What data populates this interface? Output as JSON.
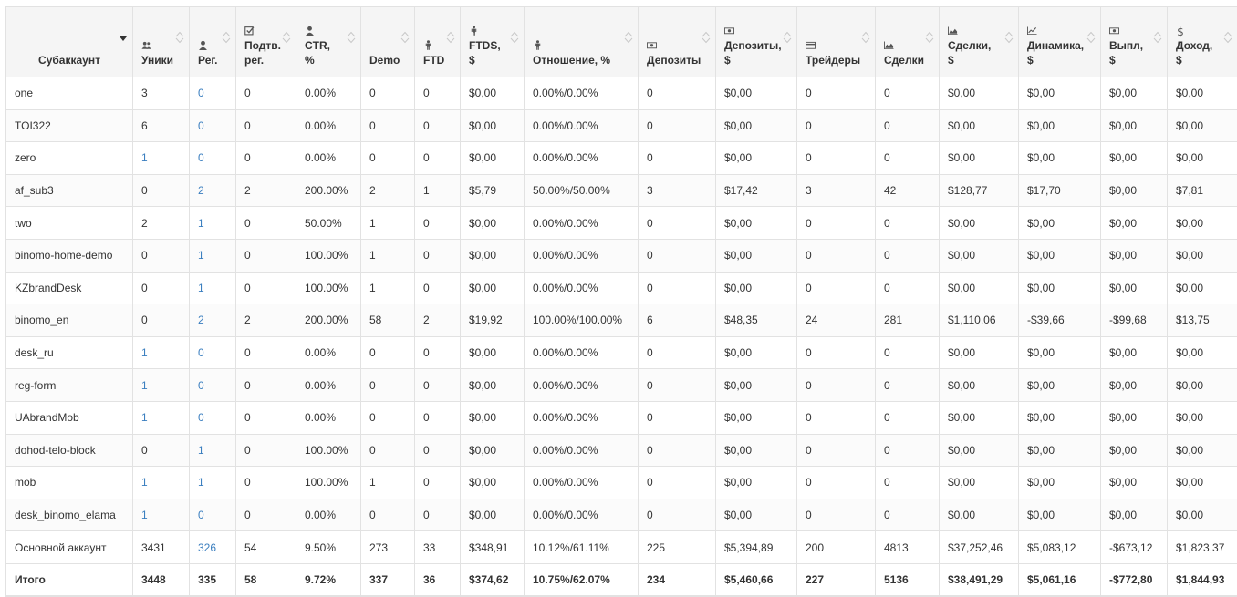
{
  "table": {
    "columns": [
      {
        "label": "Субаккаунт",
        "icon": "",
        "name": "subaccount"
      },
      {
        "label": "Уники",
        "icon": "users-icon",
        "name": "uniques"
      },
      {
        "label": "Рег.",
        "icon": "user-icon",
        "name": "reg"
      },
      {
        "label": "Подтв. рег.",
        "icon": "checkbox-icon",
        "name": "confirmed-reg"
      },
      {
        "label": "CTR, %",
        "icon": "user-icon",
        "name": "ctr"
      },
      {
        "label": "Demo",
        "icon": "",
        "name": "demo"
      },
      {
        "label": "FTD",
        "icon": "person-icon",
        "name": "ftd"
      },
      {
        "label": "FTDS, $",
        "icon": "person-icon",
        "name": "ftds"
      },
      {
        "label": "Отношение, %",
        "icon": "person-icon",
        "name": "ratio"
      },
      {
        "label": "Депозиты",
        "icon": "money-icon",
        "name": "deposits"
      },
      {
        "label": "Депозиты, $",
        "icon": "money-icon",
        "name": "deposits-usd"
      },
      {
        "label": "Трейдеры",
        "icon": "card-icon",
        "name": "traders"
      },
      {
        "label": "Сделки",
        "icon": "area-chart-icon",
        "name": "deals"
      },
      {
        "label": "Сделки, $",
        "icon": "area-chart-icon",
        "name": "deals-usd"
      },
      {
        "label": "Динамика, $",
        "icon": "line-chart-icon",
        "name": "dynamics"
      },
      {
        "label": "Выпл, $",
        "icon": "money-icon",
        "name": "payouts"
      },
      {
        "label": "Доход, $",
        "icon": "dollar-icon",
        "name": "income"
      }
    ],
    "rows": [
      [
        "one",
        "3",
        "0",
        "0",
        "0.00%",
        "0",
        "0",
        "$0,00",
        "0.00%/0.00%",
        "0",
        "$0,00",
        "0",
        "0",
        "$0,00",
        "$0,00",
        "$0,00",
        "$0,00"
      ],
      [
        "TOI322",
        "6",
        "0",
        "0",
        "0.00%",
        "0",
        "0",
        "$0,00",
        "0.00%/0.00%",
        "0",
        "$0,00",
        "0",
        "0",
        "$0,00",
        "$0,00",
        "$0,00",
        "$0,00"
      ],
      [
        "zero",
        "1",
        "0",
        "0",
        "0.00%",
        "0",
        "0",
        "$0,00",
        "0.00%/0.00%",
        "0",
        "$0,00",
        "0",
        "0",
        "$0,00",
        "$0,00",
        "$0,00",
        "$0,00"
      ],
      [
        "af_sub3",
        "0",
        "2",
        "2",
        "200.00%",
        "2",
        "1",
        "$5,79",
        "50.00%/50.00%",
        "3",
        "$17,42",
        "3",
        "42",
        "$128,77",
        "$17,70",
        "$0,00",
        "$7,81"
      ],
      [
        "two",
        "2",
        "1",
        "0",
        "50.00%",
        "1",
        "0",
        "$0,00",
        "0.00%/0.00%",
        "0",
        "$0,00",
        "0",
        "0",
        "$0,00",
        "$0,00",
        "$0,00",
        "$0,00"
      ],
      [
        "binomo-home-demo",
        "0",
        "1",
        "0",
        "100.00%",
        "1",
        "0",
        "$0,00",
        "0.00%/0.00%",
        "0",
        "$0,00",
        "0",
        "0",
        "$0,00",
        "$0,00",
        "$0,00",
        "$0,00"
      ],
      [
        "KZbrandDesk",
        "0",
        "1",
        "0",
        "100.00%",
        "1",
        "0",
        "$0,00",
        "0.00%/0.00%",
        "0",
        "$0,00",
        "0",
        "0",
        "$0,00",
        "$0,00",
        "$0,00",
        "$0,00"
      ],
      [
        "binomo_en",
        "0",
        "2",
        "2",
        "200.00%",
        "58",
        "2",
        "$19,92",
        "100.00%/100.00%",
        "6",
        "$48,35",
        "24",
        "281",
        "$1,110,06",
        "-$39,66",
        "-$99,68",
        "$13,75"
      ],
      [
        "desk_ru",
        "1",
        "0",
        "0",
        "0.00%",
        "0",
        "0",
        "$0,00",
        "0.00%/0.00%",
        "0",
        "$0,00",
        "0",
        "0",
        "$0,00",
        "$0,00",
        "$0,00",
        "$0,00"
      ],
      [
        "reg-form",
        "1",
        "0",
        "0",
        "0.00%",
        "0",
        "0",
        "$0,00",
        "0.00%/0.00%",
        "0",
        "$0,00",
        "0",
        "0",
        "$0,00",
        "$0,00",
        "$0,00",
        "$0,00"
      ],
      [
        "UAbrandMob",
        "1",
        "0",
        "0",
        "0.00%",
        "0",
        "0",
        "$0,00",
        "0.00%/0.00%",
        "0",
        "$0,00",
        "0",
        "0",
        "$0,00",
        "$0,00",
        "$0,00",
        "$0,00"
      ],
      [
        "dohod-telo-block",
        "0",
        "1",
        "0",
        "100.00%",
        "0",
        "0",
        "$0,00",
        "0.00%/0.00%",
        "0",
        "$0,00",
        "0",
        "0",
        "$0,00",
        "$0,00",
        "$0,00",
        "$0,00"
      ],
      [
        "mob",
        "1",
        "1",
        "0",
        "100.00%",
        "1",
        "0",
        "$0,00",
        "0.00%/0.00%",
        "0",
        "$0,00",
        "0",
        "0",
        "$0,00",
        "$0,00",
        "$0,00",
        "$0,00"
      ],
      [
        "desk_binomo_elama",
        "1",
        "0",
        "0",
        "0.00%",
        "0",
        "0",
        "$0,00",
        "0.00%/0.00%",
        "0",
        "$0,00",
        "0",
        "0",
        "$0,00",
        "$0,00",
        "$0,00",
        "$0,00"
      ],
      [
        "Основной аккаунт",
        "3431",
        "326",
        "54",
        "9.50%",
        "273",
        "33",
        "$348,91",
        "10.12%/61.11%",
        "225",
        "$5,394,89",
        "200",
        "4813",
        "$37,252,46",
        "$5,083,12",
        "-$673,12",
        "$1,823,37"
      ]
    ],
    "totals": [
      "Итого",
      "3448",
      "335",
      "58",
      "9.72%",
      "337",
      "36",
      "$374,62",
      "10.75%/62.07%",
      "234",
      "$5,460,66",
      "227",
      "5136",
      "$38,491,29",
      "$5,061,16",
      "-$772,80",
      "$1,844,93"
    ]
  },
  "colors": {
    "link": "#3a7ebf",
    "header_bg": "#f5f5f5",
    "border": "#e2e2e2"
  }
}
